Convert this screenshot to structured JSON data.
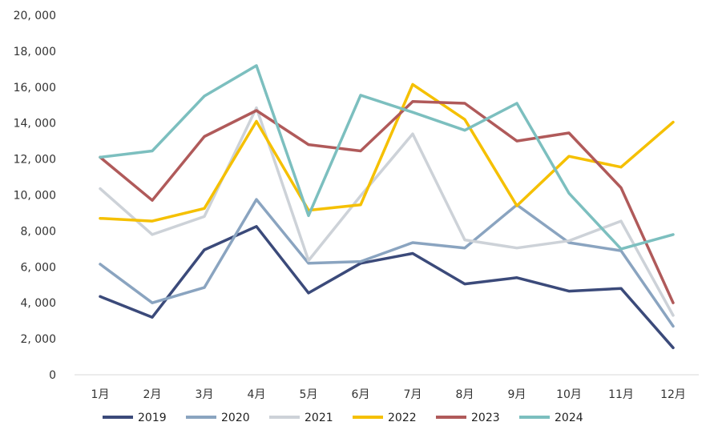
{
  "chart_data": {
    "type": "line",
    "categories": [
      "1月",
      "2月",
      "3月",
      "4月",
      "5月",
      "6月",
      "7月",
      "8月",
      "9月",
      "10月",
      "11月",
      "12月"
    ],
    "y_ticks": [
      "0",
      "2, 000",
      "4, 000",
      "6, 000",
      "8, 000",
      "10, 000",
      "12, 000",
      "14, 000",
      "16, 000",
      "18, 000",
      "20, 000"
    ],
    "ylim": [
      0,
      20000
    ],
    "grid": false,
    "legend_position": "bottom",
    "series": [
      {
        "name": "2019",
        "color": "#3b4a7a",
        "values": [
          4350,
          3200,
          6950,
          8250,
          4550,
          6200,
          6750,
          5050,
          5400,
          4650,
          4800,
          1500
        ]
      },
      {
        "name": "2020",
        "color": "#8aa4c0",
        "values": [
          6150,
          4000,
          4850,
          9750,
          6200,
          6300,
          7350,
          7050,
          9450,
          7350,
          6900,
          2700
        ]
      },
      {
        "name": "2021",
        "color": "#cdd2d8",
        "values": [
          10350,
          7800,
          8800,
          14850,
          6350,
          9950,
          13400,
          7500,
          7050,
          7450,
          8550,
          3300
        ]
      },
      {
        "name": "2022",
        "color": "#f5c000",
        "values": [
          8700,
          8550,
          9250,
          14100,
          9150,
          9450,
          16150,
          14200,
          9400,
          12150,
          11550,
          14050
        ]
      },
      {
        "name": "2023",
        "color": "#b05a5a",
        "values": [
          12100,
          9700,
          13250,
          14700,
          12800,
          12450,
          15200,
          15100,
          13000,
          13450,
          10400,
          4000
        ]
      },
      {
        "name": "2024",
        "color": "#7cbfbf",
        "values": [
          12100,
          12450,
          15500,
          17200,
          8850,
          15550,
          14600,
          13600,
          15100,
          10100,
          7000,
          7800
        ]
      }
    ]
  }
}
